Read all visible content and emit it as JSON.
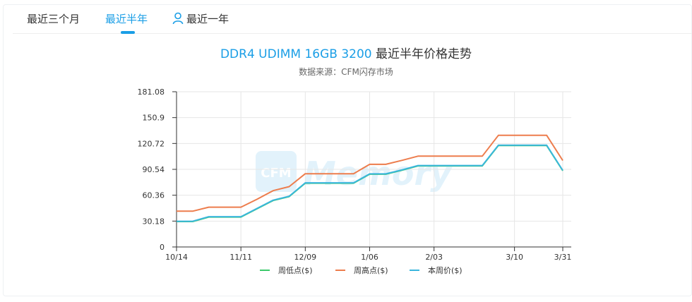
{
  "tabs": [
    {
      "label": "最近三个月",
      "active": false
    },
    {
      "label": "最近半年",
      "active": true
    },
    {
      "label": "最近一年",
      "active": false
    }
  ],
  "watermark": {
    "text": "CFM Memory"
  },
  "colors": {
    "accent": "#1a9ee6",
    "low": "#3cc96b",
    "high": "#ed7d4d",
    "current": "#3ab6dd"
  },
  "chart_data": {
    "type": "line",
    "title_prefix": "DDR4 UDIMM 16GB 3200",
    "title_suffix": " 最近半年价格走势",
    "subtitle": "数据来源：CFM闪存市场",
    "x": [
      "10/14",
      "10/21",
      "10/28",
      "11/04",
      "11/11",
      "11/18",
      "11/25",
      "12/02",
      "12/09",
      "12/16",
      "12/23",
      "12/30",
      "1/06",
      "1/13",
      "1/20",
      "1/27",
      "2/03",
      "2/10",
      "2/17",
      "2/24",
      "3/03",
      "3/10",
      "3/17",
      "3/24",
      "3/31"
    ],
    "x_tick_labels": [
      "10/14",
      "11/11",
      "12/09",
      "1/06",
      "2/03",
      "3/10",
      "3/31"
    ],
    "y_ticks": [
      0,
      30.18,
      60.36,
      90.54,
      120.72,
      150.9,
      181.08
    ],
    "ylim": [
      0,
      181.08
    ],
    "legend_position": "bottom",
    "series": [
      {
        "name": "周低点($)",
        "color": "#3cc96b",
        "values": [
          29.6,
          29.6,
          34.9,
          34.9,
          34.9,
          44.5,
          54.2,
          58.8,
          74.4,
          74.4,
          74.4,
          74.4,
          84.9,
          84.9,
          89.5,
          94.6,
          94.6,
          94.6,
          94.6,
          94.6,
          118.3,
          118.3,
          118.3,
          118.3,
          88.9
        ]
      },
      {
        "name": "周高点($)",
        "color": "#ed7d4d",
        "values": [
          41.7,
          41.7,
          46.4,
          46.4,
          46.4,
          55.6,
          65.7,
          70.4,
          85.4,
          85.4,
          85.4,
          85.4,
          96.4,
          96.4,
          101.0,
          105.9,
          105.9,
          105.9,
          105.9,
          105.9,
          130.2,
          130.2,
          130.2,
          130.2,
          100.8
        ]
      },
      {
        "name": "本周价($)",
        "color": "#3ab6dd",
        "values": [
          30.0,
          30.0,
          35.3,
          35.3,
          35.3,
          44.9,
          54.6,
          59.2,
          74.8,
          74.8,
          74.8,
          74.8,
          85.3,
          85.3,
          89.9,
          95.0,
          95.0,
          95.0,
          95.0,
          95.0,
          118.7,
          118.7,
          118.7,
          118.7,
          89.3
        ]
      }
    ]
  }
}
